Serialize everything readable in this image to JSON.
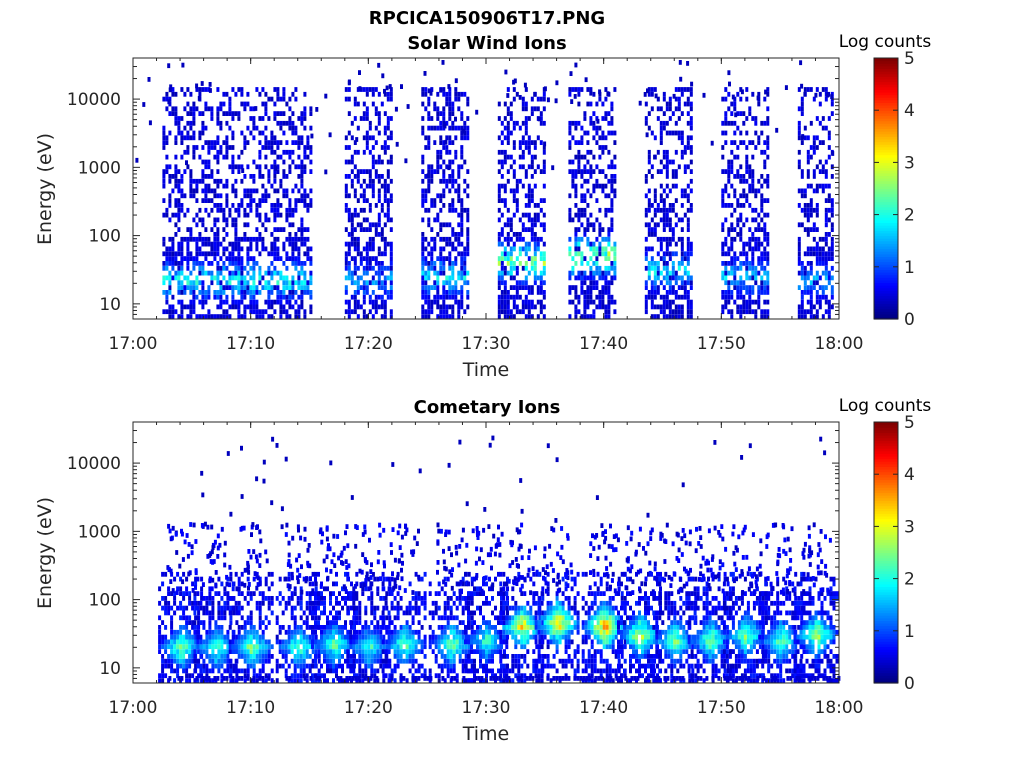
{
  "figure": {
    "title": "RPCICA150906T17.PNG"
  },
  "colorbar": {
    "label": "Log counts",
    "range": [
      0,
      5
    ],
    "ticks": [
      "0",
      "1",
      "2",
      "3",
      "4",
      "5"
    ],
    "colormap": "jet"
  },
  "chart_data": [
    {
      "type": "heatmap",
      "title": "Solar Wind Ions",
      "xlabel": "Time",
      "ylabel": "Energy (eV)",
      "x_ticks": [
        "17:00",
        "17:10",
        "17:20",
        "17:30",
        "17:40",
        "17:50",
        "18:00"
      ],
      "x_range": [
        "17:00",
        "18:00"
      ],
      "y_ticks": [
        "10",
        "100",
        "1000",
        "10000"
      ],
      "y_scale": "log",
      "y_range": [
        6,
        40000
      ],
      "z_label": "Log counts",
      "z_range": [
        0,
        5
      ],
      "bursts": [
        {
          "start": "17:02.5",
          "end": "17:15.0",
          "peak_energy_eV": 22,
          "peak_log_counts": 2.4
        },
        {
          "start": "17:18.0",
          "end": "17:22.0",
          "peak_energy_eV": 22,
          "peak_log_counts": 1.8
        },
        {
          "start": "17:24.5",
          "end": "17:28.5",
          "peak_energy_eV": 25,
          "peak_log_counts": 2.2
        },
        {
          "start": "17:31.0",
          "end": "17:35.0",
          "peak_energy_eV": 40,
          "peak_log_counts": 3.0
        },
        {
          "start": "17:37.0",
          "end": "17:41.0",
          "peak_energy_eV": 50,
          "peak_log_counts": 3.2
        },
        {
          "start": "17:43.5",
          "end": "17:47.5",
          "peak_energy_eV": 30,
          "peak_log_counts": 2.2
        },
        {
          "start": "17:50.0",
          "end": "17:54.0",
          "peak_energy_eV": 25,
          "peak_log_counts": 2.0
        },
        {
          "start": "17:56.5",
          "end": "17:59.5",
          "peak_energy_eV": 22,
          "peak_log_counts": 1.8
        }
      ]
    },
    {
      "type": "heatmap",
      "title": "Cometary Ions",
      "xlabel": "Time",
      "ylabel": "Energy (eV)",
      "x_ticks": [
        "17:00",
        "17:10",
        "17:20",
        "17:30",
        "17:40",
        "17:50",
        "18:00"
      ],
      "x_range": [
        "17:00",
        "18:00"
      ],
      "y_ticks": [
        "10",
        "100",
        "1000",
        "10000"
      ],
      "y_scale": "log",
      "y_range": [
        6,
        40000
      ],
      "z_label": "Log counts",
      "z_range": [
        0,
        5
      ],
      "peaks": [
        {
          "time": "17:04",
          "energy_eV": 20,
          "log_counts": 3.0
        },
        {
          "time": "17:07",
          "energy_eV": 20,
          "log_counts": 2.8
        },
        {
          "time": "17:10",
          "energy_eV": 20,
          "log_counts": 3.0
        },
        {
          "time": "17:14",
          "energy_eV": 20,
          "log_counts": 2.8
        },
        {
          "time": "17:17",
          "energy_eV": 22,
          "log_counts": 2.8
        },
        {
          "time": "17:20",
          "energy_eV": 20,
          "log_counts": 2.6
        },
        {
          "time": "17:23",
          "energy_eV": 22,
          "log_counts": 2.8
        },
        {
          "time": "17:27",
          "energy_eV": 22,
          "log_counts": 3.0
        },
        {
          "time": "17:30",
          "energy_eV": 25,
          "log_counts": 2.6
        },
        {
          "time": "17:33",
          "energy_eV": 40,
          "log_counts": 3.8
        },
        {
          "time": "17:36",
          "energy_eV": 45,
          "log_counts": 4.0
        },
        {
          "time": "17:40",
          "energy_eV": 40,
          "log_counts": 4.2
        },
        {
          "time": "17:43",
          "energy_eV": 30,
          "log_counts": 3.4
        },
        {
          "time": "17:46",
          "energy_eV": 25,
          "log_counts": 3.0
        },
        {
          "time": "17:49",
          "energy_eV": 25,
          "log_counts": 3.0
        },
        {
          "time": "17:52",
          "energy_eV": 30,
          "log_counts": 3.0
        },
        {
          "time": "17:55",
          "energy_eV": 25,
          "log_counts": 2.8
        },
        {
          "time": "17:58",
          "energy_eV": 30,
          "log_counts": 3.2
        }
      ]
    }
  ]
}
